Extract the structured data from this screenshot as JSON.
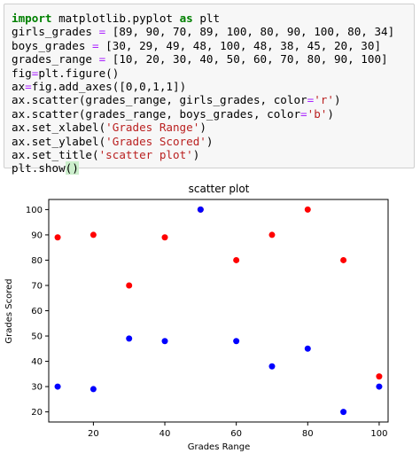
{
  "code_cell": {
    "lines": [
      [
        {
          "t": "import",
          "c": "kw"
        },
        {
          "t": " matplotlib.pyplot "
        },
        {
          "t": "as",
          "c": "kw"
        },
        {
          "t": " plt"
        }
      ],
      [
        {
          "t": "girls_grades "
        },
        {
          "t": "=",
          "c": "op"
        },
        {
          "t": " [89, 90, 70, 89, 100, 80, 90, 100, 80, 34]"
        }
      ],
      [
        {
          "t": "boys_grades "
        },
        {
          "t": "=",
          "c": "op"
        },
        {
          "t": " [30, 29, 49, 48, 100, 48, 38, 45, 20, 30]"
        }
      ],
      [
        {
          "t": "grades_range "
        },
        {
          "t": "=",
          "c": "op"
        },
        {
          "t": " [10, 20, 30, 40, 50, 60, 70, 80, 90, 100]"
        }
      ],
      [
        {
          "t": "fig"
        },
        {
          "t": "=",
          "c": "op"
        },
        {
          "t": "plt.figure()"
        }
      ],
      [
        {
          "t": "ax"
        },
        {
          "t": "=",
          "c": "op"
        },
        {
          "t": "fig.add_axes([0,0,1,1])"
        }
      ],
      [
        {
          "t": "ax.scatter(grades_range, girls_grades, color"
        },
        {
          "t": "=",
          "c": "op"
        },
        {
          "t": "'r'",
          "c": "str"
        },
        {
          "t": ")"
        }
      ],
      [
        {
          "t": "ax.scatter(grades_range, boys_grades, color"
        },
        {
          "t": "=",
          "c": "op"
        },
        {
          "t": "'b'",
          "c": "str"
        },
        {
          "t": ")"
        }
      ],
      [
        {
          "t": "ax.set_xlabel("
        },
        {
          "t": "'Grades Range'",
          "c": "str"
        },
        {
          "t": ")"
        }
      ],
      [
        {
          "t": "ax.set_ylabel("
        },
        {
          "t": "'Grades Scored'",
          "c": "str"
        },
        {
          "t": ")"
        }
      ],
      [
        {
          "t": "ax.set_title("
        },
        {
          "t": "'scatter plot'",
          "c": "str"
        },
        {
          "t": ")"
        }
      ],
      [
        {
          "t": "plt.show"
        },
        {
          "t": "()",
          "c": "cursor-paren"
        }
      ]
    ]
  },
  "chart_data": {
    "type": "scatter",
    "title": "scatter plot",
    "xlabel": "Grades Range",
    "ylabel": "Grades Scored",
    "xlim": [
      7.5,
      102.5
    ],
    "ylim": [
      16,
      104
    ],
    "xticks": [
      20,
      40,
      60,
      80,
      100
    ],
    "yticks": [
      20,
      30,
      40,
      50,
      60,
      70,
      80,
      90,
      100
    ],
    "grid": false,
    "legend": "none",
    "x": [
      10,
      20,
      30,
      40,
      50,
      60,
      70,
      80,
      90,
      100
    ],
    "series": [
      {
        "values": [
          89,
          90,
          70,
          89,
          100,
          80,
          90,
          100,
          80,
          34
        ],
        "color": "#ff0000"
      },
      {
        "values": [
          30,
          29,
          49,
          48,
          100,
          48,
          38,
          45,
          20,
          30
        ],
        "color": "#0000ff"
      }
    ]
  }
}
